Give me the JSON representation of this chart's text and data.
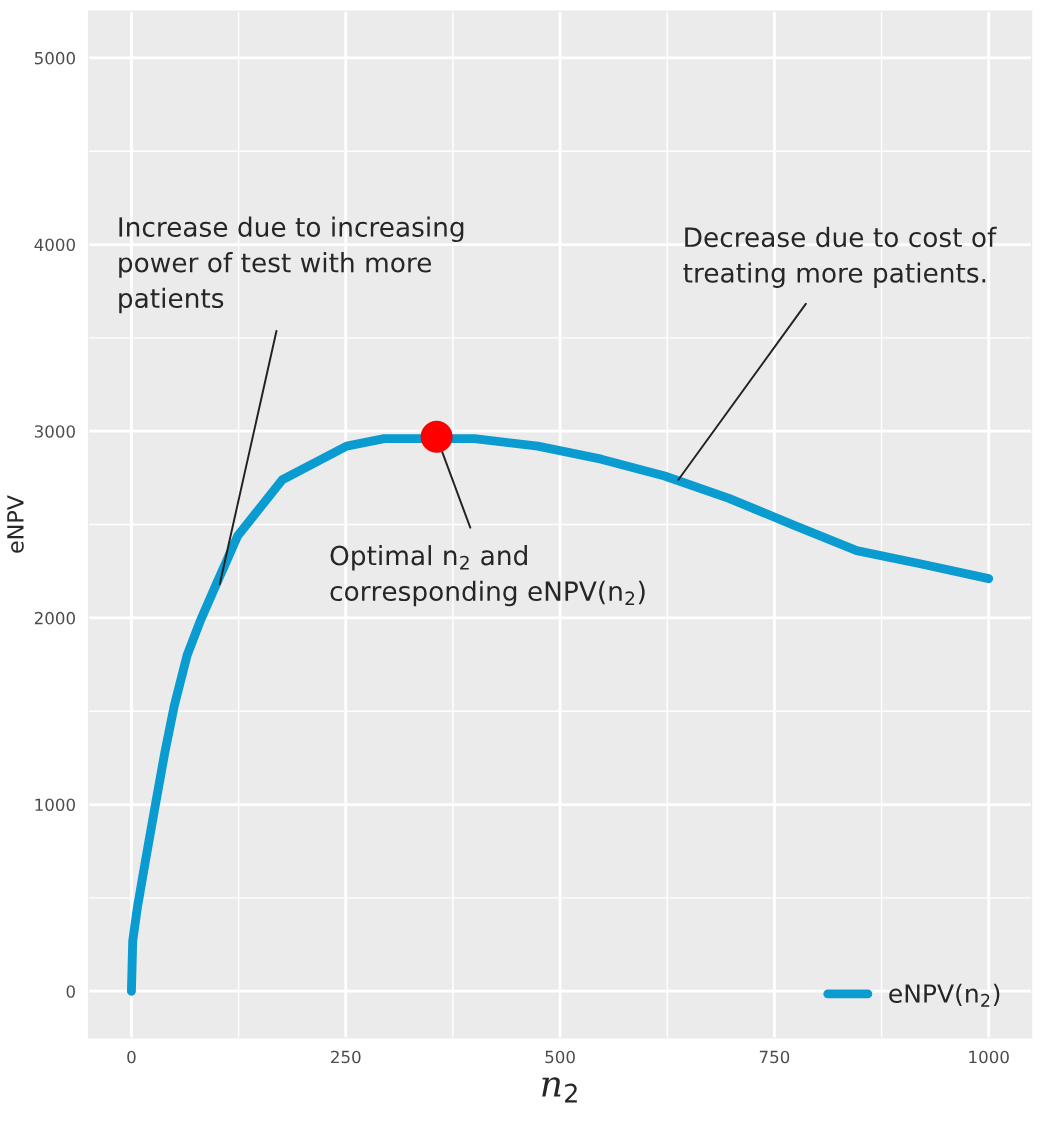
{
  "chart_data": {
    "type": "line",
    "xlabel": "n$_{2}$",
    "ylabel": "eNPV",
    "xlim": [
      -50,
      1050
    ],
    "ylim": [
      -250,
      5250
    ],
    "xticks": [
      0,
      250,
      500,
      750,
      1000
    ],
    "yticks": [
      0,
      1000,
      2000,
      3000,
      4000,
      5000
    ],
    "grid": true,
    "legend": "bottom right",
    "series": [
      {
        "name": "eNPV(n$_{2}$)",
        "color": "#0a9bd0",
        "x": [
          0,
          1.5,
          7,
          16,
          28,
          39,
          50,
          65,
          80,
          98,
          124,
          176,
          251,
          295,
          400,
          474,
          548,
          622,
          697,
          771,
          846,
          920,
          1000
        ],
        "values": [
          0,
          270,
          450,
          690,
          1000,
          1280,
          1530,
          1800,
          1980,
          2170,
          2440,
          2740,
          2920,
          2960,
          2960,
          2920,
          2850,
          2760,
          2640,
          2500,
          2360,
          2290,
          2210
        ]
      },
      {
        "color": "#ff0000",
        "type": "scatter",
        "marker": "circle",
        "x": [
          356
        ],
        "values": [
          2970
        ]
      }
    ],
    "annotations": [
      {
        "text": "Increase due to increasing\npower of test with more\npatients",
        "x": 103,
        "y": 2180
      },
      {
        "text": "Decrease due to cost of\ntreating more patients.",
        "x": 638,
        "y": 2740
      },
      {
        "text": "Optimal n$_{2}$ and\ncorresponding eNPV(n$_{2}$)",
        "x": 356,
        "y": 2970
      }
    ]
  }
}
